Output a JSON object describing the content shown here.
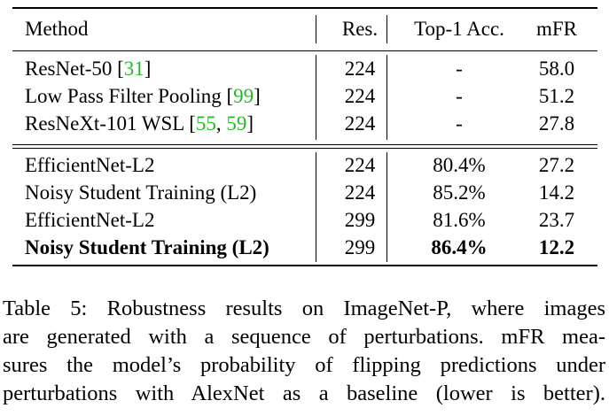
{
  "table": {
    "header": {
      "method": "Method",
      "res": "Res.",
      "acc": "Top-1 Acc.",
      "mfr": "mFR"
    },
    "group1": [
      {
        "method": "ResNet-50 [",
        "cite1": "31",
        "sep": "",
        "cite2": "",
        "close": "]",
        "res": "224",
        "acc": "-",
        "mfr": "58.0"
      },
      {
        "method": "Low Pass Filter Pooling [",
        "cite1": "99",
        "sep": "",
        "cite2": "",
        "close": "]",
        "res": "224",
        "acc": "-",
        "mfr": "51.2"
      },
      {
        "method": "ResNeXt-101 WSL [",
        "cite1": "55",
        "sep": ", ",
        "cite2": "59",
        "close": "]",
        "res": "224",
        "acc": "-",
        "mfr": "27.8"
      }
    ],
    "group2": [
      {
        "method": "EfficientNet-L2",
        "res": "224",
        "acc": "80.4%",
        "mfr": "27.2"
      },
      {
        "method": "Noisy Student Training (L2)",
        "res": "224",
        "acc": "85.2%",
        "mfr": "14.2"
      },
      {
        "method": "EfficientNet-L2",
        "res": "299",
        "acc": "81.6%",
        "mfr": "23.7"
      },
      {
        "method": "Noisy Student Training (L2)",
        "res": "299",
        "acc": "86.4%",
        "mfr": "12.2"
      }
    ]
  },
  "caption": {
    "line1": "Table 5: Robustness results on ImageNet-P, where images",
    "line2": "are generated with a sequence of perturbations. mFR mea-",
    "line3": "sures the model’s probability of flipping predictions under",
    "line4": "perturbations with AlexNet as a baseline (lower is better)."
  }
}
